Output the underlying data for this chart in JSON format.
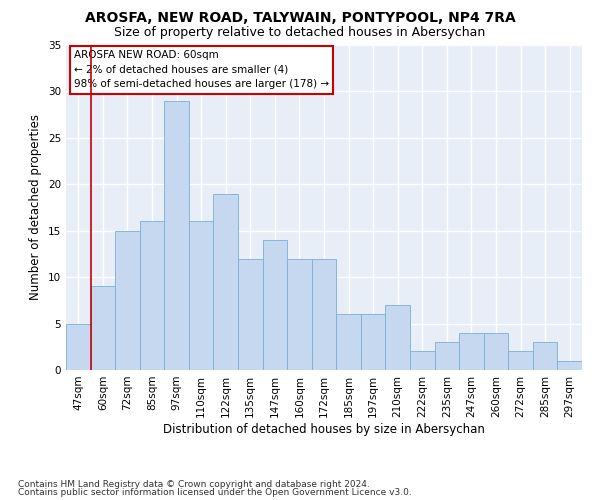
{
  "title1": "AROSFA, NEW ROAD, TALYWAIN, PONTYPOOL, NP4 7RA",
  "title2": "Size of property relative to detached houses in Abersychan",
  "xlabel": "Distribution of detached houses by size in Abersychan",
  "ylabel": "Number of detached properties",
  "categories": [
    "47sqm",
    "60sqm",
    "72sqm",
    "85sqm",
    "97sqm",
    "110sqm",
    "122sqm",
    "135sqm",
    "147sqm",
    "160sqm",
    "172sqm",
    "185sqm",
    "197sqm",
    "210sqm",
    "222sqm",
    "235sqm",
    "247sqm",
    "260sqm",
    "272sqm",
    "285sqm",
    "297sqm"
  ],
  "values": [
    5,
    9,
    15,
    16,
    29,
    16,
    19,
    12,
    14,
    12,
    12,
    6,
    6,
    7,
    2,
    3,
    4,
    4,
    2,
    3,
    1
  ],
  "bar_color": "#c5d8f0",
  "bar_edge_color": "#7bafd4",
  "vline_color": "#cc0000",
  "annotation_text": "AROSFA NEW ROAD: 60sqm\n← 2% of detached houses are smaller (4)\n98% of semi-detached houses are larger (178) →",
  "annotation_box_color": "#ffffff",
  "annotation_box_edge_color": "#cc0000",
  "footer1": "Contains HM Land Registry data © Crown copyright and database right 2024.",
  "footer2": "Contains public sector information licensed under the Open Government Licence v3.0.",
  "ylim": [
    0,
    35
  ],
  "yticks": [
    0,
    5,
    10,
    15,
    20,
    25,
    30,
    35
  ],
  "background_color": "#e8eef8",
  "grid_color": "#ffffff",
  "title_fontsize": 10,
  "subtitle_fontsize": 9,
  "axis_label_fontsize": 8.5,
  "tick_fontsize": 7.5,
  "annotation_fontsize": 7.5,
  "footer_fontsize": 6.5
}
